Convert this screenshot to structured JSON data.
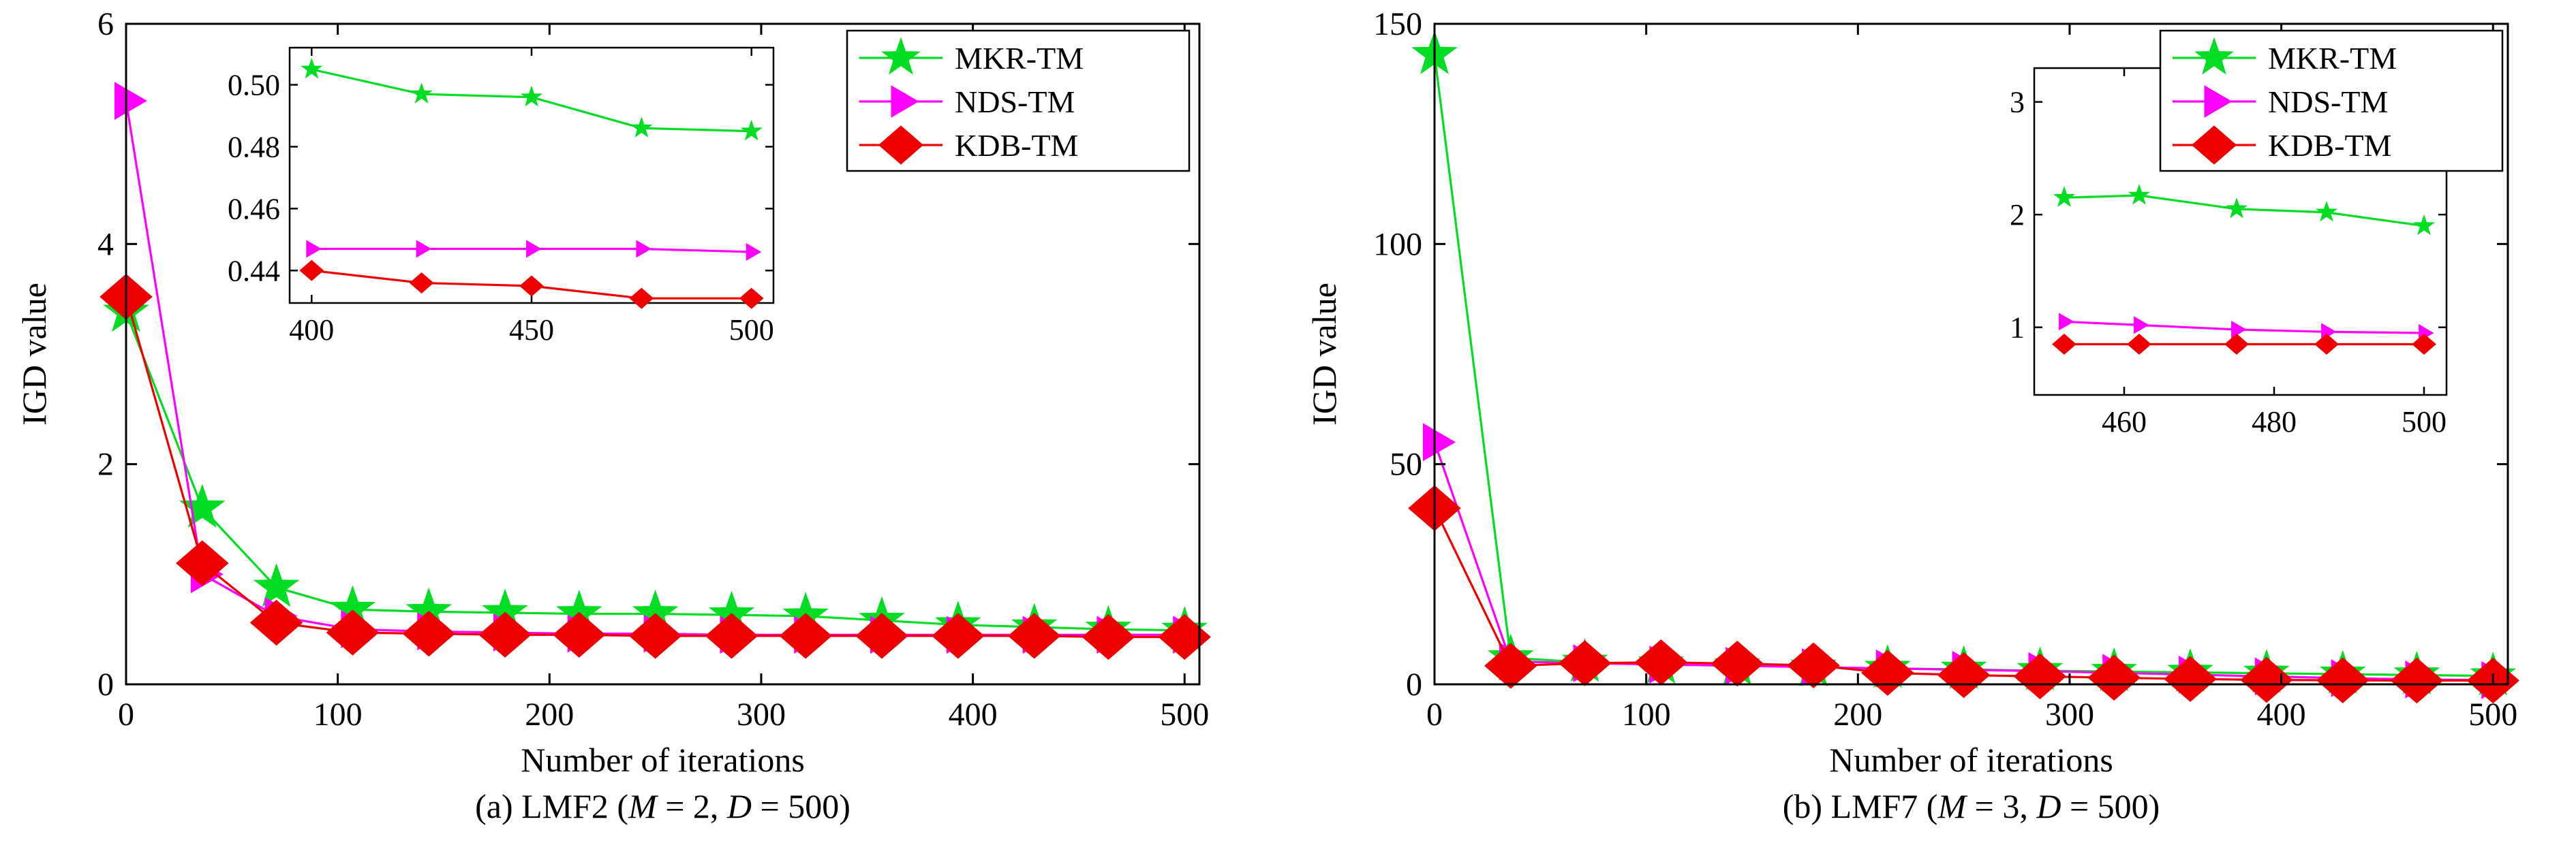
{
  "page": {
    "background": "#ffffff"
  },
  "colors": {
    "mkr": "#00dd22",
    "nds": "#ff00ff",
    "kdb": "#ee0000",
    "axis": "#000000"
  },
  "legend": {
    "position": "top-right",
    "entries": [
      {
        "label": "MKR-TM",
        "marker": "star",
        "color": "#00dd22"
      },
      {
        "label": "NDS-TM",
        "marker": "triangle-right",
        "color": "#ff00ff"
      },
      {
        "label": "KDB-TM",
        "marker": "diamond",
        "color": "#ee0000"
      }
    ]
  },
  "chart_data": [
    {
      "type": "line",
      "caption": "(a) LMF2 (M = 2, D = 500)",
      "xlabel": "Number of iterations",
      "ylabel": "IGD value",
      "xlim": [
        0,
        507
      ],
      "ylim": [
        0,
        6
      ],
      "xticks": [
        0,
        100,
        200,
        300,
        400,
        500
      ],
      "xticklabels": [
        "0",
        "100",
        "200",
        "300",
        "400",
        "500"
      ],
      "yticks": [
        0,
        2,
        4,
        6
      ],
      "yticklabels": [
        "0",
        "2",
        "4",
        "6"
      ],
      "grid": false,
      "x": [
        0,
        36,
        71,
        107,
        143,
        179,
        214,
        250,
        286,
        321,
        357,
        393,
        429,
        464,
        500
      ],
      "series": [
        {
          "name": "MKR-TM",
          "marker": "star",
          "color": "#00dd22",
          "values": [
            3.38,
            1.6,
            0.88,
            0.68,
            0.66,
            0.65,
            0.64,
            0.64,
            0.63,
            0.62,
            0.58,
            0.54,
            0.52,
            0.5,
            0.49
          ]
        },
        {
          "name": "NDS-TM",
          "marker": "triangle-right",
          "color": "#ff00ff",
          "values": [
            5.3,
            1.0,
            0.62,
            0.5,
            0.48,
            0.47,
            0.46,
            0.46,
            0.45,
            0.45,
            0.45,
            0.45,
            0.45,
            0.45,
            0.45
          ]
        },
        {
          "name": "KDB-TM",
          "marker": "diamond",
          "color": "#ee0000",
          "values": [
            3.52,
            1.1,
            0.56,
            0.47,
            0.46,
            0.45,
            0.45,
            0.44,
            0.44,
            0.44,
            0.44,
            0.44,
            0.44,
            0.43,
            0.43
          ]
        }
      ],
      "inset": {
        "xlim": [
          395,
          505
        ],
        "ylim": [
          0.4295,
          0.512
        ],
        "xticks": [
          400,
          450,
          500
        ],
        "xticklabels": [
          "400",
          "450",
          "500"
        ],
        "yticks": [
          0.44,
          0.46,
          0.48,
          0.5
        ],
        "yticklabels": [
          "0.44",
          "0.46",
          "0.48",
          "0.50"
        ],
        "x": [
          400,
          425,
          450,
          475,
          500
        ],
        "series": [
          {
            "name": "MKR-TM",
            "marker": "star",
            "color": "#00dd22",
            "values": [
              0.505,
              0.497,
              0.496,
              0.486,
              0.485
            ]
          },
          {
            "name": "NDS-TM",
            "marker": "triangle-right",
            "color": "#ff00ff",
            "values": [
              0.447,
              0.447,
              0.447,
              0.447,
              0.446
            ]
          },
          {
            "name": "KDB-TM",
            "marker": "diamond",
            "color": "#ee0000",
            "values": [
              0.44,
              0.436,
              0.435,
              0.431,
              0.431
            ]
          }
        ]
      }
    },
    {
      "type": "line",
      "caption": "(b) LMF7 (M = 3, D = 500)",
      "xlabel": "Number of iterations",
      "ylabel": "IGD value",
      "xlim": [
        0,
        507
      ],
      "ylim": [
        0,
        150
      ],
      "xticks": [
        0,
        100,
        200,
        300,
        400,
        500
      ],
      "xticklabels": [
        "0",
        "100",
        "200",
        "300",
        "400",
        "500"
      ],
      "yticks": [
        0,
        50,
        100,
        150
      ],
      "yticklabels": [
        "0",
        "50",
        "100",
        "150"
      ],
      "grid": false,
      "x": [
        0,
        36,
        71,
        107,
        143,
        179,
        214,
        250,
        286,
        321,
        357,
        393,
        429,
        464,
        500
      ],
      "series": [
        {
          "name": "MKR-TM",
          "marker": "star",
          "color": "#00dd22",
          "values": [
            143,
            6.0,
            5.0,
            4.6,
            4.2,
            3.9,
            3.6,
            3.4,
            3.1,
            2.9,
            2.7,
            2.5,
            2.3,
            2.1,
            1.9
          ]
        },
        {
          "name": "NDS-TM",
          "marker": "triangle-right",
          "color": "#ff00ff",
          "values": [
            55,
            5.2,
            4.8,
            4.5,
            4.2,
            3.9,
            3.6,
            3.3,
            3.0,
            2.6,
            2.2,
            1.8,
            1.4,
            1.1,
            0.95
          ]
        },
        {
          "name": "KDB-TM",
          "marker": "diamond",
          "color": "#ee0000",
          "values": [
            40,
            4.2,
            4.8,
            5.0,
            4.7,
            4.3,
            2.6,
            2.1,
            1.8,
            1.5,
            1.2,
            1.0,
            0.9,
            0.85,
            0.85
          ]
        }
      ],
      "inset": {
        "xlim": [
          448,
          503
        ],
        "ylim": [
          0.4,
          3.3
        ],
        "xticks": [
          460,
          480,
          500
        ],
        "xticklabels": [
          "460",
          "480",
          "500"
        ],
        "yticks": [
          1,
          2,
          3
        ],
        "yticklabels": [
          "1",
          "2",
          "3"
        ],
        "x": [
          452,
          462,
          475,
          487,
          500
        ],
        "series": [
          {
            "name": "MKR-TM",
            "marker": "star",
            "color": "#00dd22",
            "values": [
              2.15,
              2.17,
              2.05,
              2.02,
              1.9
            ]
          },
          {
            "name": "NDS-TM",
            "marker": "triangle-right",
            "color": "#ff00ff",
            "values": [
              1.05,
              1.02,
              0.98,
              0.96,
              0.95
            ]
          },
          {
            "name": "KDB-TM",
            "marker": "diamond",
            "color": "#ee0000",
            "values": [
              0.85,
              0.85,
              0.85,
              0.85,
              0.85
            ]
          }
        ]
      }
    }
  ]
}
